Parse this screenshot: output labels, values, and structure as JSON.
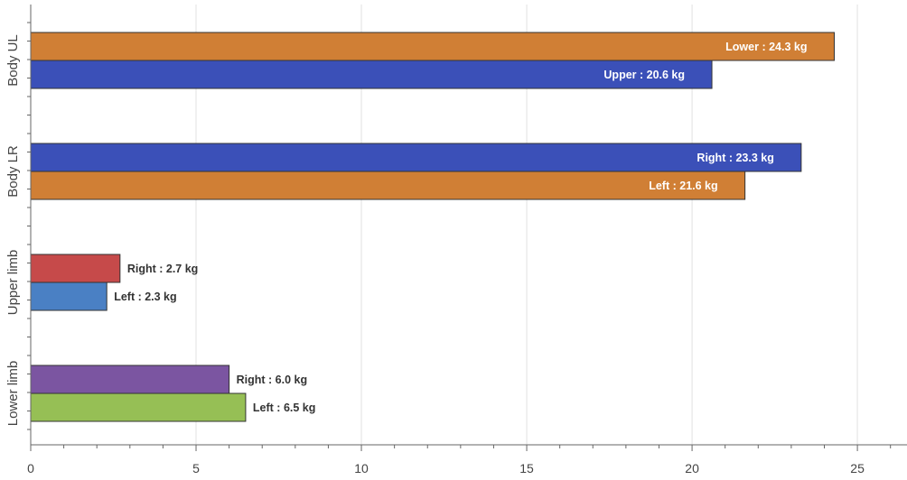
{
  "chart_data": {
    "type": "bar",
    "orientation": "horizontal",
    "xlim": [
      0,
      26.5
    ],
    "x_ticks": [
      0,
      5,
      10,
      15,
      20,
      25
    ],
    "grid": true,
    "categories": [
      "Body UL",
      "Body LR",
      "Upper limb",
      "Lower limb"
    ],
    "bars": [
      {
        "category": "Body UL",
        "value": 24.3,
        "label": "Lower : 24.3 kg",
        "color": "#d07f35",
        "label_inside": true
      },
      {
        "category": "Body UL",
        "value": 20.6,
        "label": "Upper : 20.6 kg",
        "color": "#3b50b8",
        "label_inside": true
      },
      {
        "category": "Body LR",
        "value": 23.3,
        "label": "Right : 23.3 kg",
        "color": "#3b50b8",
        "label_inside": true
      },
      {
        "category": "Body LR",
        "value": 21.6,
        "label": "Left : 21.6 kg",
        "color": "#d07f35",
        "label_inside": true
      },
      {
        "category": "Upper limb",
        "value": 2.7,
        "label": "Right : 2.7 kg",
        "color": "#c64a4a",
        "label_inside": false
      },
      {
        "category": "Upper limb",
        "value": 2.3,
        "label": "Left : 2.3 kg",
        "color": "#4a80c4",
        "label_inside": false
      },
      {
        "category": "Lower limb",
        "value": 6.0,
        "label": "Right : 6.0 kg",
        "color": "#7b55a1",
        "label_inside": false
      },
      {
        "category": "Lower limb",
        "value": 6.5,
        "label": "Left : 6.5 kg",
        "color": "#96bf55",
        "label_inside": false
      }
    ]
  }
}
